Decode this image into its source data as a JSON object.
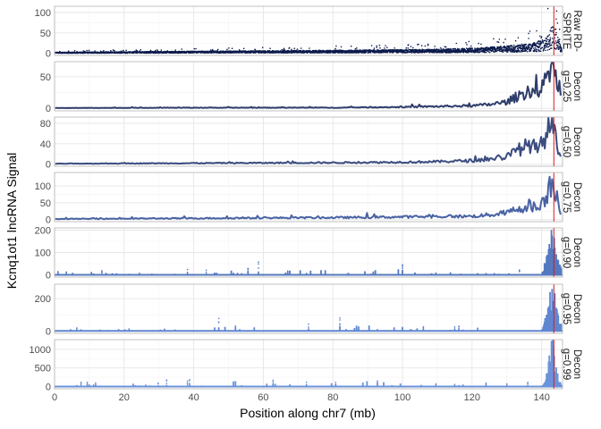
{
  "chart_data": {
    "type": "line",
    "xlabel": "Position along chr7 (mb)",
    "ylabel": "Kcnq1ot1 lncRNA Signal",
    "xlim": [
      0,
      146
    ],
    "x_ticks": [
      0,
      20,
      40,
      60,
      80,
      100,
      120,
      140
    ],
    "x_tick_labels": [
      "0",
      "20",
      "40",
      "60",
      "80",
      "100",
      "120",
      "140"
    ],
    "grid": true,
    "reference_line_x": 143.5,
    "reference_line_color": "#d7191c",
    "panels": [
      {
        "label_lines": [
          "Raw RD-",
          "SPRITE"
        ],
        "ylim": [
          -5,
          115
        ],
        "y_ticks": [
          0,
          50,
          100
        ],
        "y_tick_labels": [
          "0",
          "50",
          "100"
        ],
        "color": "#0b1a4b",
        "style": "points",
        "profile": [
          {
            "x": 0,
            "y": 2
          },
          {
            "x": 20,
            "y": 3
          },
          {
            "x": 40,
            "y": 4
          },
          {
            "x": 60,
            "y": 5
          },
          {
            "x": 80,
            "y": 6
          },
          {
            "x": 100,
            "y": 7
          },
          {
            "x": 110,
            "y": 8
          },
          {
            "x": 120,
            "y": 10
          },
          {
            "x": 130,
            "y": 14
          },
          {
            "x": 138,
            "y": 20
          },
          {
            "x": 141,
            "y": 28
          },
          {
            "x": 142.5,
            "y": 45
          },
          {
            "x": 143.5,
            "y": 60
          },
          {
            "x": 144.5,
            "y": 35
          },
          {
            "x": 145.5,
            "y": 12
          }
        ]
      },
      {
        "label_lines": [
          "Decon",
          "g=0.25"
        ],
        "ylim": [
          -4,
          74
        ],
        "y_ticks": [
          0,
          50
        ],
        "y_tick_labels": [
          "0",
          "50"
        ],
        "color": "#2f3d6b",
        "style": "line",
        "profile": [
          {
            "x": 0,
            "y": 0.5
          },
          {
            "x": 40,
            "y": 1
          },
          {
            "x": 80,
            "y": 1
          },
          {
            "x": 100,
            "y": 2
          },
          {
            "x": 110,
            "y": 3
          },
          {
            "x": 120,
            "y": 4
          },
          {
            "x": 125,
            "y": 6
          },
          {
            "x": 130,
            "y": 10
          },
          {
            "x": 134,
            "y": 22
          },
          {
            "x": 137,
            "y": 30
          },
          {
            "x": 139,
            "y": 18
          },
          {
            "x": 141,
            "y": 40
          },
          {
            "x": 142.5,
            "y": 58
          },
          {
            "x": 143.3,
            "y": 68
          },
          {
            "x": 144.2,
            "y": 45
          },
          {
            "x": 145.2,
            "y": 15
          }
        ]
      },
      {
        "label_lines": [
          "Decon",
          "g=0.50"
        ],
        "ylim": [
          -4,
          92
        ],
        "y_ticks": [
          0,
          40,
          80
        ],
        "y_tick_labels": [
          "0",
          "40",
          "80"
        ],
        "color": "#3a4c80",
        "style": "line",
        "profile": [
          {
            "x": 0,
            "y": 1
          },
          {
            "x": 40,
            "y": 2
          },
          {
            "x": 80,
            "y": 3
          },
          {
            "x": 100,
            "y": 4
          },
          {
            "x": 110,
            "y": 5
          },
          {
            "x": 120,
            "y": 7
          },
          {
            "x": 125,
            "y": 10
          },
          {
            "x": 130,
            "y": 15
          },
          {
            "x": 134,
            "y": 30
          },
          {
            "x": 137,
            "y": 40
          },
          {
            "x": 139,
            "y": 25
          },
          {
            "x": 141,
            "y": 55
          },
          {
            "x": 142.5,
            "y": 75
          },
          {
            "x": 143.3,
            "y": 85
          },
          {
            "x": 144.2,
            "y": 55
          },
          {
            "x": 145.2,
            "y": 20
          }
        ]
      },
      {
        "label_lines": [
          "Decon",
          "g=0.75"
        ],
        "ylim": [
          -6,
          140
        ],
        "y_ticks": [
          0,
          50,
          100
        ],
        "y_tick_labels": [
          "0",
          "50",
          "100"
        ],
        "color": "#4862a3",
        "style": "line",
        "profile": [
          {
            "x": 0,
            "y": 2
          },
          {
            "x": 40,
            "y": 4
          },
          {
            "x": 80,
            "y": 6
          },
          {
            "x": 100,
            "y": 8
          },
          {
            "x": 110,
            "y": 9
          },
          {
            "x": 120,
            "y": 10
          },
          {
            "x": 125,
            "y": 14
          },
          {
            "x": 130,
            "y": 20
          },
          {
            "x": 134,
            "y": 35
          },
          {
            "x": 137,
            "y": 45
          },
          {
            "x": 139,
            "y": 30
          },
          {
            "x": 141,
            "y": 70
          },
          {
            "x": 142.5,
            "y": 100
          },
          {
            "x": 143.3,
            "y": 125
          },
          {
            "x": 144.2,
            "y": 80
          },
          {
            "x": 145.2,
            "y": 25
          }
        ]
      },
      {
        "label_lines": [
          "Decon",
          "g=0.90"
        ],
        "ylim": [
          -10,
          210
        ],
        "y_ticks": [
          0,
          100,
          200
        ],
        "y_tick_labels": [
          "0",
          "100",
          "200"
        ],
        "color": "#5478c0",
        "style": "sparse",
        "profile": [
          {
            "x": 0,
            "y": 0
          },
          {
            "x": 140,
            "y": 0
          },
          {
            "x": 141,
            "y": 60
          },
          {
            "x": 142,
            "y": 120
          },
          {
            "x": 143,
            "y": 195
          },
          {
            "x": 144,
            "y": 150
          },
          {
            "x": 145,
            "y": 40
          }
        ]
      },
      {
        "label_lines": [
          "Decon",
          "g=0.95"
        ],
        "ylim": [
          -15,
          290
        ],
        "y_ticks": [
          0,
          200
        ],
        "y_tick_labels": [
          "0",
          "200"
        ],
        "color": "#5f86d0",
        "style": "sparse",
        "profile": [
          {
            "x": 0,
            "y": 0
          },
          {
            "x": 140,
            "y": 0
          },
          {
            "x": 141,
            "y": 90
          },
          {
            "x": 142,
            "y": 180
          },
          {
            "x": 143,
            "y": 260
          },
          {
            "x": 144,
            "y": 200
          },
          {
            "x": 145,
            "y": 50
          }
        ]
      },
      {
        "label_lines": [
          "Decon",
          "g=0.99"
        ],
        "ylim": [
          -60,
          1260
        ],
        "y_ticks": [
          0,
          500,
          1000
        ],
        "y_tick_labels": [
          "0",
          "500",
          "1000"
        ],
        "color": "#6a92da",
        "style": "sparse",
        "profile": [
          {
            "x": 0,
            "y": 0
          },
          {
            "x": 140,
            "y": 0
          },
          {
            "x": 141,
            "y": 200
          },
          {
            "x": 142,
            "y": 700
          },
          {
            "x": 143,
            "y": 1200
          },
          {
            "x": 144,
            "y": 600
          },
          {
            "x": 145,
            "y": 100
          }
        ]
      }
    ]
  }
}
